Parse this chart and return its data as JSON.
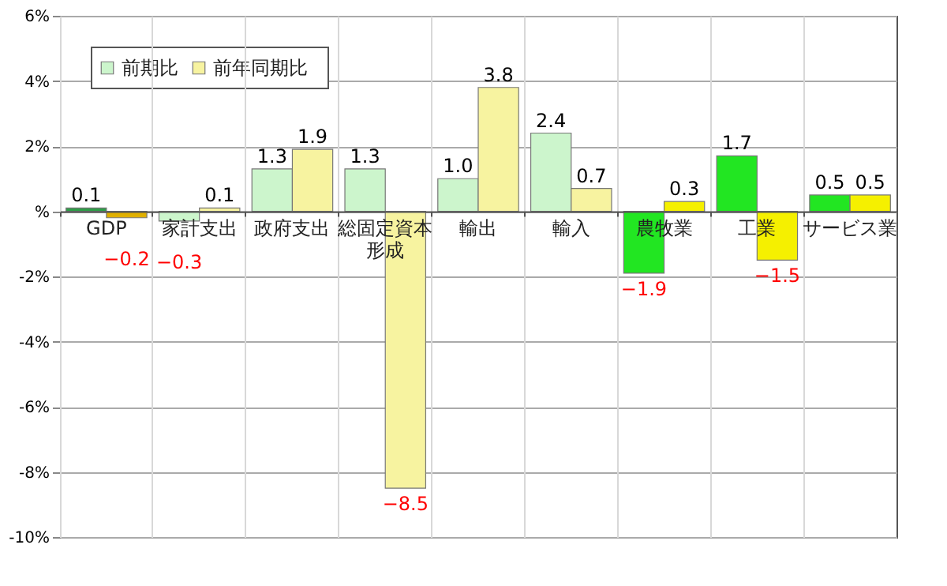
{
  "chart_data": {
    "type": "bar",
    "categories": [
      "GDP",
      "家計支出",
      "政府支出",
      "総固定資本形成",
      "輸出",
      "輸入",
      "農牧業",
      "工業",
      "サービス業"
    ],
    "series": [
      {
        "name": "前期比",
        "color": "#ccf5cc",
        "colors": [
          "#2e9e48",
          "#ccf5cc",
          "#ccf5cc",
          "#ccf5cc",
          "#ccf5cc",
          "#ccf5cc",
          "#22e622",
          "#22e622",
          "#22e622"
        ],
        "values": [
          0.1,
          -0.3,
          1.3,
          1.3,
          1.0,
          2.4,
          -1.9,
          1.7,
          0.5
        ],
        "value_labels": [
          "0.1",
          "−0.3",
          "1.3",
          "1.3",
          "1.0",
          "2.4",
          "−1.9",
          "1.7",
          "0.5"
        ]
      },
      {
        "name": "前年同期比",
        "color": "#f7f3a0",
        "colors": [
          "#e0b000",
          "#f7f3a0",
          "#f7f3a0",
          "#f7f3a0",
          "#f7f3a0",
          "#f7f3a0",
          "#f5f000",
          "#f5f000",
          "#f5f000"
        ],
        "values": [
          -0.2,
          0.1,
          1.9,
          -8.5,
          3.8,
          0.7,
          0.3,
          -1.5,
          0.5
        ],
        "value_labels": [
          "−0.2",
          "0.1",
          "1.9",
          "−8.5",
          "3.8",
          "0.7",
          "0.3",
          "−1.5",
          "0.5"
        ]
      }
    ],
    "ylim": [
      -10,
      6
    ],
    "yticks": [
      {
        "value": -10,
        "label": "-10%"
      },
      {
        "value": -8,
        "label": "-8%"
      },
      {
        "value": -6,
        "label": "-6%"
      },
      {
        "value": -4,
        "label": "-4%"
      },
      {
        "value": -2,
        "label": "-2%"
      },
      {
        "value": 0,
        "label": "%"
      },
      {
        "value": 2,
        "label": "2%"
      },
      {
        "value": 4,
        "label": "4%"
      },
      {
        "value": 6,
        "label": "6%"
      }
    ],
    "grid": true,
    "legend": "top left"
  }
}
